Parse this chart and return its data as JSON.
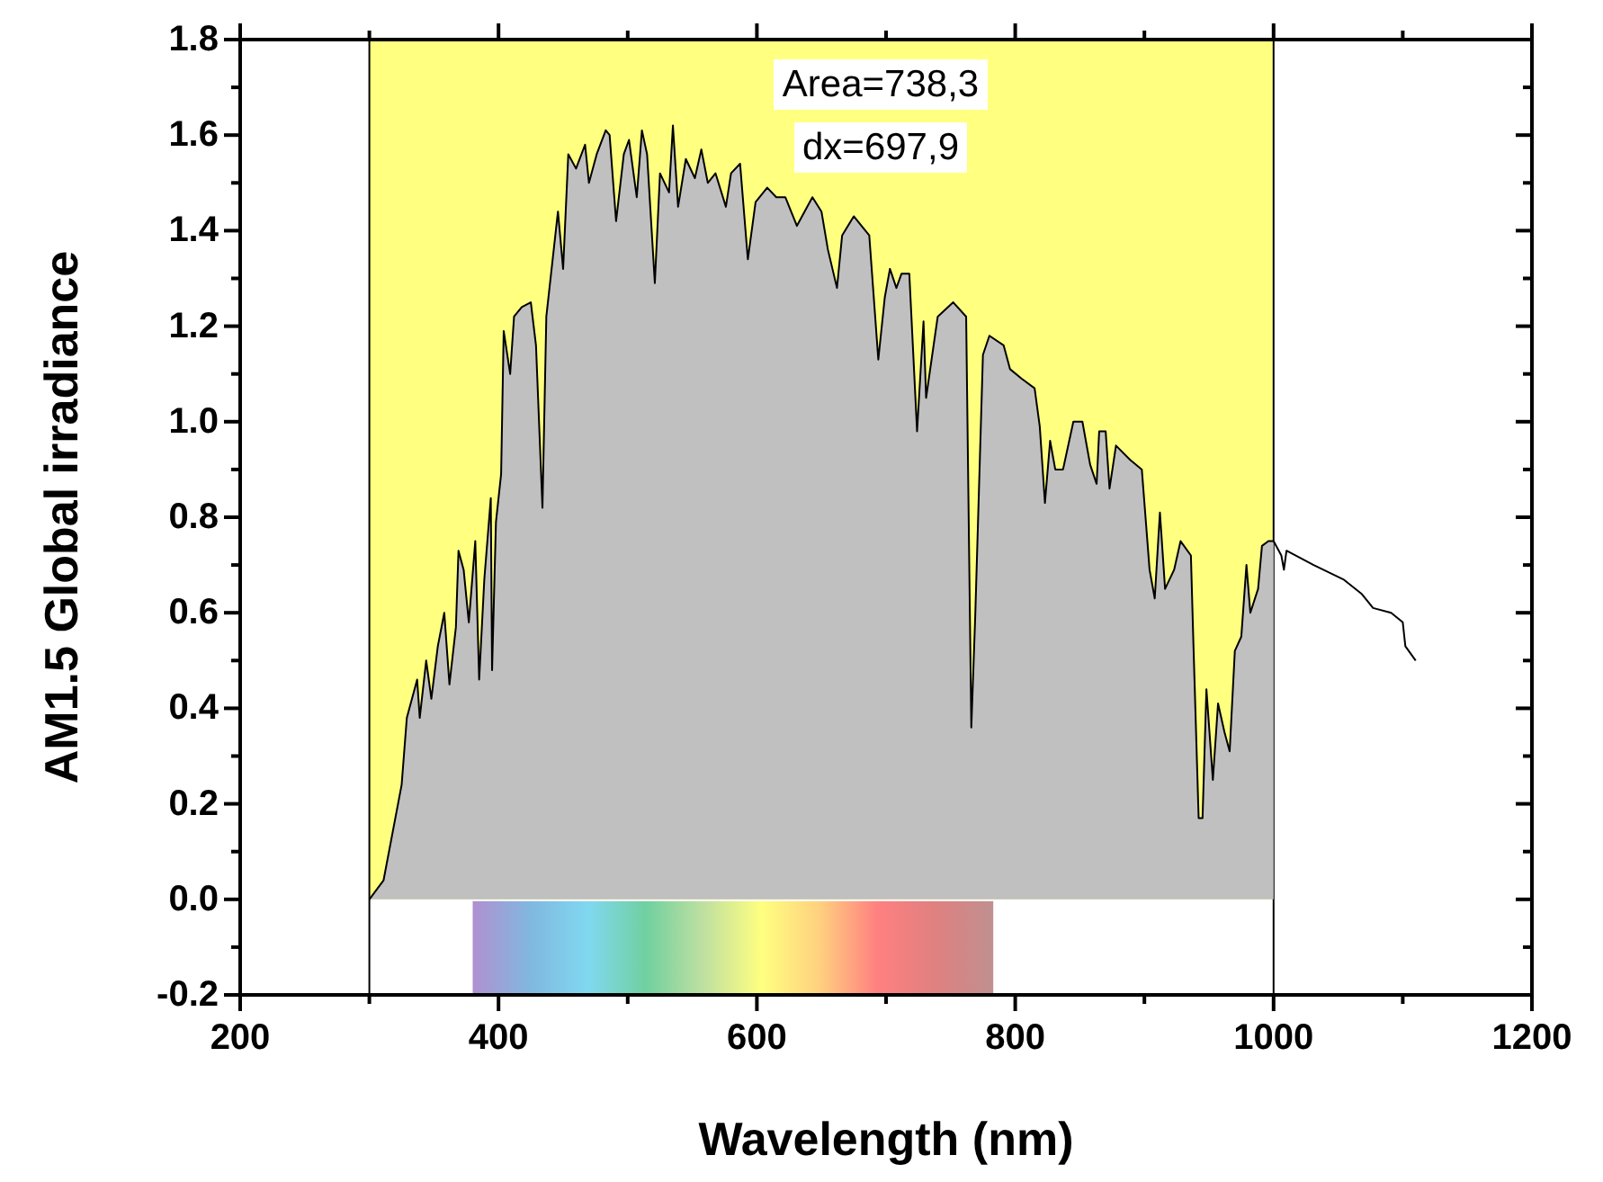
{
  "chart_data": {
    "type": "area",
    "xlabel": "Wavelength (nm)",
    "ylabel": "AM1.5 Global irradiance",
    "annotations": [
      "Area=738,3",
      "dx=697,9"
    ],
    "xlim": [
      200,
      1200
    ],
    "xticks": [
      200,
      {
        "value": 300,
        "label": null
      },
      400,
      {
        "value": 500,
        "label": null
      },
      600,
      {
        "value": 700,
        "label": null
      },
      800,
      {
        "value": 900,
        "label": null
      },
      1000,
      {
        "value": 1100,
        "label": null
      },
      1200
    ],
    "ylim": [
      -0.2,
      1.8
    ],
    "yticks": [
      -0.2,
      {
        "value": -0.1,
        "label": null
      },
      {
        "value": 0,
        "label": "0.0"
      },
      {
        "value": 0.1,
        "label": null
      },
      0.2,
      {
        "value": 0.3,
        "label": null
      },
      0.4,
      {
        "value": 0.5,
        "label": null
      },
      0.6,
      {
        "value": 0.7,
        "label": null
      },
      0.8,
      {
        "value": 0.9,
        "label": null
      },
      {
        "value": 1,
        "label": "1.0"
      },
      {
        "value": 1.1,
        "label": null
      },
      1.2,
      {
        "value": 1.3,
        "label": null
      },
      1.4,
      {
        "value": 1.5,
        "label": null
      },
      1.6,
      {
        "value": 1.7,
        "label": null
      },
      1.8
    ],
    "bands": [
      {
        "axis": "x",
        "from": 300,
        "to": 1000,
        "color": "#ffff80"
      }
    ],
    "series": [
      {
        "color": "#c0c0c0",
        "x": [
          300,
          311,
          325,
          329,
          337,
          339,
          344,
          348,
          353,
          358,
          362,
          367,
          369,
          373,
          377,
          382,
          385,
          389,
          394,
          395,
          398,
          402,
          404,
          409,
          412,
          418,
          425,
          429,
          434,
          437,
          446,
          450,
          454,
          460,
          467,
          470,
          476,
          483,
          486,
          491,
          497,
          501,
          507,
          511,
          515,
          521,
          525,
          532,
          535,
          539,
          545,
          552,
          557,
          562,
          568,
          576,
          580,
          587,
          593,
          599,
          608,
          615,
          622,
          631,
          639,
          643,
          650,
          655,
          662,
          666,
          675,
          687,
          694,
          699,
          703,
          708,
          712,
          718,
          724,
          729,
          731,
          740,
          752,
          762,
          766,
          769,
          775,
          780,
          791,
          796,
          805,
          815,
          819,
          823,
          827,
          831,
          837,
          845,
          852,
          858,
          863,
          865,
          870,
          873,
          878,
          889,
          898,
          904,
          908,
          912,
          916,
          923,
          928,
          936,
          938,
          942,
          945,
          948,
          953,
          957,
          962,
          966,
          970,
          975,
          979,
          982,
          988,
          991,
          996,
          1000
        ],
        "values": [
          0,
          0.04,
          0.24,
          0.38,
          0.46,
          0.38,
          0.5,
          0.42,
          0.53,
          0.6,
          0.45,
          0.57,
          0.73,
          0.69,
          0.58,
          0.75,
          0.46,
          0.67,
          0.84,
          0.48,
          0.79,
          0.89,
          1.19,
          1.1,
          1.22,
          1.24,
          1.25,
          1.16,
          0.82,
          1.22,
          1.44,
          1.32,
          1.56,
          1.53,
          1.58,
          1.5,
          1.56,
          1.61,
          1.6,
          1.42,
          1.56,
          1.59,
          1.47,
          1.61,
          1.56,
          1.29,
          1.52,
          1.48,
          1.62,
          1.45,
          1.55,
          1.51,
          1.57,
          1.5,
          1.52,
          1.45,
          1.52,
          1.54,
          1.34,
          1.46,
          1.49,
          1.47,
          1.47,
          1.41,
          1.45,
          1.47,
          1.44,
          1.36,
          1.28,
          1.39,
          1.43,
          1.39,
          1.13,
          1.26,
          1.32,
          1.28,
          1.31,
          1.31,
          0.98,
          1.21,
          1.05,
          1.22,
          1.25,
          1.22,
          0.36,
          0.59,
          1.14,
          1.18,
          1.16,
          1.11,
          1.09,
          1.07,
          0.99,
          0.83,
          0.96,
          0.9,
          0.9,
          1.0,
          1.0,
          0.91,
          0.87,
          0.98,
          0.98,
          0.86,
          0.95,
          0.92,
          0.9,
          0.69,
          0.63,
          0.81,
          0.65,
          0.69,
          0.75,
          0.72,
          0.53,
          0.17,
          0.17,
          0.44,
          0.25,
          0.41,
          0.35,
          0.31,
          0.52,
          0.55,
          0.7,
          0.6,
          0.65,
          0.74,
          0.75,
          0.75
        ]
      },
      {
        "type": "line",
        "color": "#000000",
        "x": [
          1000,
          1006,
          1008,
          1010,
          1031,
          1054,
          1068,
          1077,
          1091,
          1100,
          1102,
          1110
        ],
        "values": [
          0.75,
          0.72,
          0.69,
          0.73,
          0.7,
          0.67,
          0.64,
          0.61,
          0.6,
          0.58,
          0.53,
          0.5
        ]
      }
    ]
  }
}
